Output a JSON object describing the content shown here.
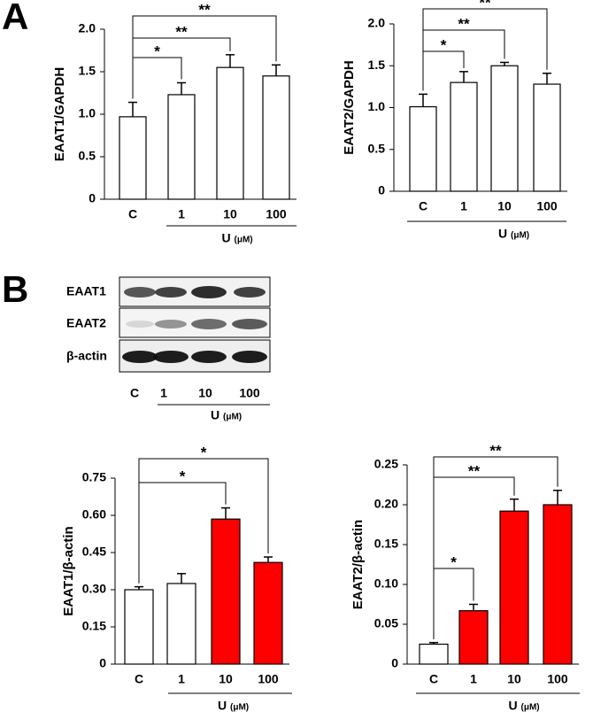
{
  "panels": [
    "A",
    "B"
  ],
  "blot": {
    "rows": [
      "EAAT1",
      "EAAT2",
      "β-actin"
    ],
    "lanes": [
      "C",
      "1",
      "10",
      "100"
    ],
    "xlabel": "U",
    "unit": "(μM)"
  },
  "chart_data": [
    {
      "type": "bar",
      "ylabel": "EAAT1/GAPDH",
      "xlabel": "U",
      "unit": "(μM)",
      "categories": [
        "C",
        "1",
        "10",
        "100"
      ],
      "values": [
        0.97,
        1.23,
        1.55,
        1.45
      ],
      "errors": [
        0.17,
        0.14,
        0.15,
        0.13
      ],
      "colors": [
        "#ffffff",
        "#ffffff",
        "#ffffff",
        "#ffffff"
      ],
      "ylim": [
        0,
        2
      ],
      "yticks": [
        0,
        0.5,
        {
          "value": 1,
          "label": "1.0"
        },
        1.5,
        {
          "value": 2,
          "label": "2.0"
        }
      ],
      "significance": [
        {
          "from": 0,
          "to": 1,
          "label": "*"
        },
        {
          "from": 0,
          "to": 2,
          "label": "**"
        },
        {
          "from": 0,
          "to": 3,
          "label": "**"
        }
      ]
    },
    {
      "type": "bar",
      "ylabel": "EAAT2/GAPDH",
      "xlabel": "U",
      "unit": "(μM)",
      "categories": [
        "C",
        "1",
        "10",
        "100"
      ],
      "values": [
        1.01,
        1.3,
        1.5,
        1.28
      ],
      "errors": [
        0.15,
        0.13,
        0.04,
        0.13
      ],
      "colors": [
        "#ffffff",
        "#ffffff",
        "#ffffff",
        "#ffffff"
      ],
      "ylim": [
        0,
        2
      ],
      "yticks": [
        0,
        0.5,
        {
          "value": 1,
          "label": "1.0"
        },
        1.5,
        {
          "value": 2,
          "label": "2.0"
        }
      ],
      "significance": [
        {
          "from": 0,
          "to": 1,
          "label": "*"
        },
        {
          "from": 0,
          "to": 2,
          "label": "**"
        },
        {
          "from": 0,
          "to": 3,
          "label": "**"
        }
      ]
    },
    {
      "type": "bar",
      "ylabel": "EAAT1/β-actin",
      "xlabel": "U",
      "unit": "(μM)",
      "categories": [
        "C",
        "1",
        "10",
        "100"
      ],
      "values": [
        0.3,
        0.325,
        0.585,
        0.41
      ],
      "errors": [
        0.012,
        0.04,
        0.045,
        0.022
      ],
      "colors": [
        "#ffffff",
        "#ffffff",
        "#ff0000",
        "#ff0000"
      ],
      "ylim": [
        0,
        0.75
      ],
      "yticks": [
        0,
        0.15,
        {
          "value": 0.3,
          "label": "0.30"
        },
        0.45,
        {
          "value": 0.6,
          "label": "0.60"
        },
        0.75
      ],
      "significance": [
        {
          "from": 0,
          "to": 2,
          "label": "*"
        },
        {
          "from": 0,
          "to": 3,
          "label": "*"
        }
      ]
    },
    {
      "type": "bar",
      "ylabel": "EAAT2/β-actin",
      "xlabel": "U",
      "unit": "(μM)",
      "categories": [
        "C",
        "1",
        "10",
        "100"
      ],
      "values": [
        0.025,
        0.067,
        0.192,
        0.2
      ],
      "errors": [
        0.002,
        0.008,
        0.015,
        0.018
      ],
      "colors": [
        "#ffffff",
        "#ff0000",
        "#ff0000",
        "#ff0000"
      ],
      "ylim": [
        0,
        0.25
      ],
      "yticks": [
        0,
        0.05,
        {
          "value": 0.1,
          "label": "0.10"
        },
        0.15,
        {
          "value": 0.2,
          "label": "0.20"
        },
        0.25
      ],
      "significance": [
        {
          "from": 0,
          "to": 1,
          "label": "*"
        },
        {
          "from": 0,
          "to": 2,
          "label": "**"
        },
        {
          "from": 0,
          "to": 3,
          "label": "**"
        }
      ]
    }
  ]
}
